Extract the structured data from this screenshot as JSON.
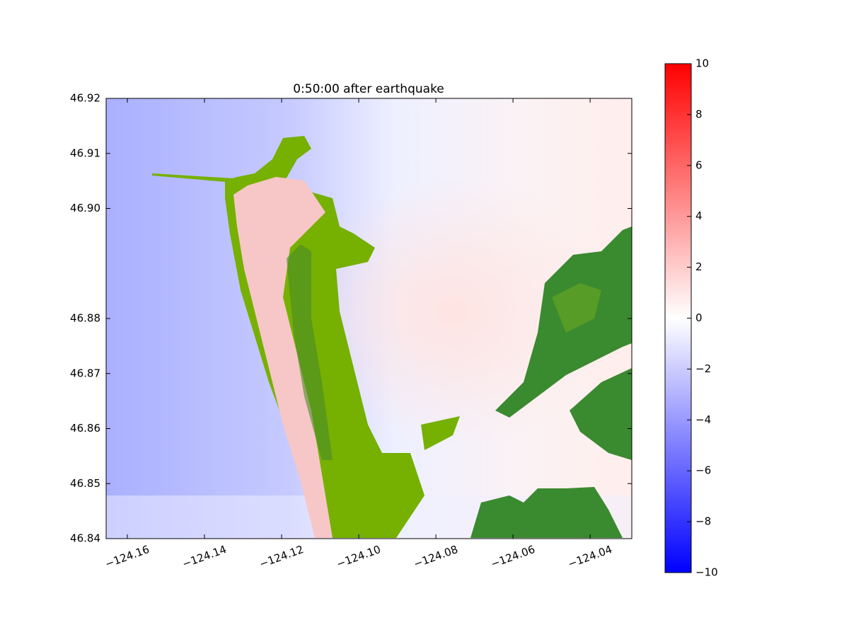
{
  "chart_data": {
    "type": "heatmap",
    "title": "0:50:00 after earthquake",
    "xlim": [
      -124.1655,
      -124.0292
    ],
    "ylim": [
      46.84,
      46.92
    ],
    "xticks": [
      {
        "value": -124.16,
        "label": "−124.16"
      },
      {
        "value": -124.14,
        "label": "−124.14"
      },
      {
        "value": -124.12,
        "label": "−124.12"
      },
      {
        "value": -124.1,
        "label": "−124.10"
      },
      {
        "value": -124.08,
        "label": "−124.08"
      },
      {
        "value": -124.06,
        "label": "−124.06"
      },
      {
        "value": -124.04,
        "label": "−124.04"
      }
    ],
    "yticks": [
      46.84,
      46.85,
      46.86,
      46.87,
      46.88,
      {
        "value": 46.9,
        "label": "46.90"
      },
      46.91,
      46.92
    ],
    "colorbar": {
      "lim": [
        -10,
        10
      ],
      "colors": [
        "#0000ff",
        "#ffffff",
        "#ff0000"
      ],
      "ticks": [
        {
          "value": -10,
          "label": "−10"
        },
        {
          "value": -8,
          "label": "−8"
        },
        {
          "value": -6,
          "label": "−6"
        },
        {
          "value": -4,
          "label": "−4"
        },
        {
          "value": -2,
          "label": "−2"
        },
        0,
        2,
        4,
        6,
        8,
        10
      ]
    }
  }
}
